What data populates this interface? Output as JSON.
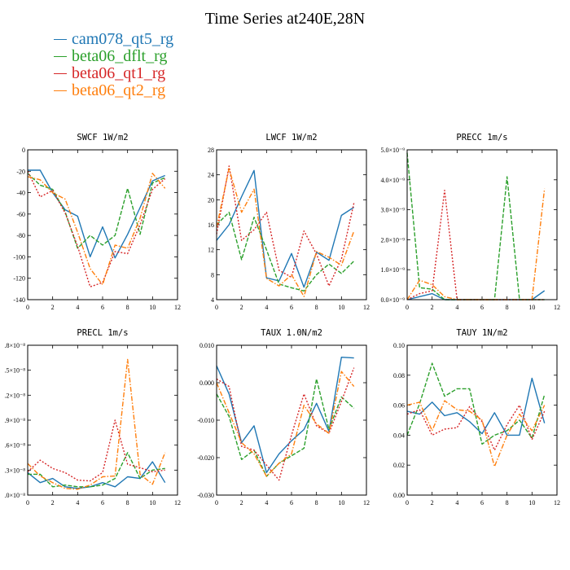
{
  "title": "Time Series at240E,28N",
  "legend": [
    {
      "name": "cam078_qt5_rg",
      "color": "#1f77b4"
    },
    {
      "name": "beta06_dflt_rg",
      "color": "#2ca02c"
    },
    {
      "name": "beta06_qt1_rg",
      "color": "#d62728"
    },
    {
      "name": "beta06_qt2_rg",
      "color": "#ff7f0e"
    }
  ],
  "chart_data": [
    {
      "type": "line",
      "title": "SWCF   1W/m2",
      "x": [
        0,
        1,
        2,
        3,
        4,
        5,
        6,
        7,
        8,
        9,
        10,
        11
      ],
      "xlim": [
        0,
        12
      ],
      "xticks": [
        0,
        2,
        4,
        6,
        8,
        10,
        12
      ],
      "ylim": [
        -140,
        0
      ],
      "yticks": [
        -140,
        -120,
        -100,
        -80,
        -60,
        -40,
        -20,
        0
      ],
      "ytick_labels": [
        "-140",
        "-120",
        "-100",
        "-80",
        "-60",
        "-40",
        "-20",
        "0"
      ],
      "series": [
        {
          "values": [
            -19,
            -19,
            -40,
            -56,
            -62,
            -100,
            -72,
            -101,
            -79,
            -54,
            -29,
            -24
          ]
        },
        {
          "values": [
            -22,
            -33,
            -37,
            -58,
            -92,
            -80,
            -89,
            -80,
            -36,
            -79,
            -31,
            -26
          ]
        },
        {
          "values": [
            -20,
            -44,
            -38,
            -59,
            -90,
            -128,
            -124,
            -95,
            -97,
            -70,
            -37,
            -27
          ]
        },
        {
          "values": [
            -25,
            -28,
            -40,
            -46,
            -77,
            -111,
            -126,
            -89,
            -92,
            -64,
            -22,
            -36
          ]
        }
      ]
    },
    {
      "type": "line",
      "title": "LWCF   1W/m2",
      "x": [
        0,
        1,
        2,
        3,
        4,
        5,
        6,
        7,
        8,
        9,
        10,
        11
      ],
      "xlim": [
        0,
        12
      ],
      "xticks": [
        0,
        2,
        4,
        6,
        8,
        10,
        12
      ],
      "ylim": [
        4,
        28
      ],
      "yticks": [
        4,
        8,
        12,
        16,
        20,
        24,
        28
      ],
      "ytick_labels": [
        "4",
        "8",
        "12",
        "16",
        "20",
        "24",
        "28"
      ],
      "series": [
        {
          "values": [
            13.5,
            16,
            20.5,
            24.7,
            7.5,
            7,
            11.4,
            6,
            11.6,
            10.3,
            17.5,
            18.8
          ]
        },
        {
          "values": [
            16,
            18,
            10.4,
            17.2,
            12,
            6.5,
            5.9,
            5.4,
            8,
            9.7,
            8.2,
            10.2
          ]
        },
        {
          "values": [
            14.5,
            25.4,
            13.5,
            15.2,
            18,
            8.7,
            7.6,
            15,
            11.3,
            6.2,
            10.5,
            19.5
          ]
        },
        {
          "values": [
            15.6,
            25,
            18,
            21.7,
            7.4,
            6.2,
            8,
            4.5,
            11.7,
            10.8,
            9.5,
            15
          ]
        }
      ]
    },
    {
      "type": "line",
      "title": "PRECC   1m/s",
      "x": [
        0,
        1,
        2,
        3,
        4,
        5,
        6,
        7,
        8,
        9,
        10,
        11
      ],
      "xlim": [
        0,
        12
      ],
      "xticks": [
        0,
        2,
        4,
        6,
        8,
        10,
        12
      ],
      "ylim": [
        0,
        5e-09
      ],
      "yticks": [
        0,
        1e-09,
        2e-09,
        3e-09,
        4e-09,
        5e-09
      ],
      "ytick_labels": [
        "0.0×10⁻⁹",
        "1.0×10⁻⁹",
        "2.0×10⁻⁹",
        "3.0×10⁻⁹",
        "4.0×10⁻⁹",
        "5.0×10⁻⁹"
      ],
      "series": [
        {
          "values": [
            0,
            1e-10,
            2e-10,
            0,
            0,
            0,
            0,
            0,
            0,
            0,
            0,
            3e-10
          ]
        },
        {
          "values": [
            4.9e-09,
            4e-10,
            3.5e-10,
            0,
            0,
            0,
            0,
            0,
            4.1e-09,
            0,
            0,
            0
          ]
        },
        {
          "values": [
            0,
            2e-10,
            3e-10,
            3.65e-09,
            0,
            0,
            0,
            0,
            0,
            0,
            0,
            0
          ]
        },
        {
          "values": [
            0,
            6.5e-10,
            5e-10,
            1e-10,
            0,
            0,
            0,
            0,
            0,
            0,
            0,
            3.7e-09
          ]
        }
      ]
    },
    {
      "type": "line",
      "title": "PRECL   1m/s",
      "x": [
        0,
        1,
        2,
        3,
        4,
        5,
        6,
        7,
        8,
        9,
        10,
        11
      ],
      "xlim": [
        0,
        12
      ],
      "xticks": [
        0,
        2,
        4,
        6,
        8,
        10,
        12
      ],
      "ylim": [
        0,
        1.8e-08
      ],
      "yticks": [
        0,
        3e-09,
        6e-09,
        9e-09,
        1.2e-08,
        1.5e-08,
        1.8e-08
      ],
      "ytick_labels": [
        ".0×10⁻⁸",
        ".3×10⁻⁸",
        ".6×10⁻⁸",
        ".9×10⁻⁸",
        ".2×10⁻⁸",
        ".5×10⁻⁸",
        ".8×10⁻⁸"
      ],
      "series": [
        {
          "values": [
            2.7e-09,
            1.5e-09,
            2e-09,
            1e-09,
            8e-10,
            1e-09,
            1.5e-09,
            1e-09,
            2.2e-09,
            2e-09,
            4e-09,
            1.5e-09
          ]
        },
        {
          "values": [
            2.5e-09,
            2.5e-09,
            1e-09,
            1.2e-09,
            1e-09,
            1e-09,
            1.2e-09,
            2e-09,
            5.1e-09,
            2e-09,
            3e-09,
            3.2e-09
          ]
        },
        {
          "values": [
            2.8e-09,
            4.2e-09,
            3.2e-09,
            2.7e-09,
            1.8e-09,
            1.7e-09,
            2.7e-09,
            9e-09,
            3.7e-09,
            3.3e-09,
            2.8e-09,
            3e-09
          ]
        },
        {
          "values": [
            3.8e-09,
            2.3e-09,
            1.5e-09,
            8e-10,
            7e-10,
            1.2e-09,
            2.2e-09,
            2.3e-09,
            1.63e-08,
            2.5e-09,
            1.3e-09,
            5.1e-09
          ]
        }
      ]
    },
    {
      "type": "line",
      "title": "TAUX   1.0N/m2",
      "x": [
        0,
        1,
        2,
        3,
        4,
        5,
        6,
        7,
        8,
        9,
        10,
        11
      ],
      "xlim": [
        0,
        12
      ],
      "xticks": [
        0,
        2,
        4,
        6,
        8,
        10,
        12
      ],
      "ylim": [
        -0.03,
        0.01
      ],
      "yticks": [
        -0.03,
        -0.02,
        -0.01,
        0,
        0.01
      ],
      "ytick_labels": [
        "-0.030",
        "-0.020",
        "-0.010",
        "0.000",
        "0.010"
      ],
      "series": [
        {
          "values": [
            0.0045,
            -0.003,
            -0.016,
            -0.0115,
            -0.024,
            -0.019,
            -0.0155,
            -0.0125,
            -0.0055,
            -0.013,
            0.0068,
            0.0066
          ]
        },
        {
          "values": [
            -0.003,
            -0.009,
            -0.0205,
            -0.018,
            -0.025,
            -0.0215,
            -0.0195,
            -0.0175,
            0.001,
            -0.0125,
            -0.0038,
            -0.0068
          ]
        },
        {
          "values": [
            0.001,
            -0.001,
            -0.017,
            -0.018,
            -0.022,
            -0.026,
            -0.014,
            -0.003,
            -0.0115,
            -0.0135,
            -0.005,
            0.004
          ]
        },
        {
          "values": [
            0,
            -0.008,
            -0.016,
            -0.019,
            -0.025,
            -0.0215,
            -0.019,
            -0.006,
            -0.011,
            -0.0135,
            0.003,
            -0.001
          ]
        }
      ]
    },
    {
      "type": "line",
      "title": "TAUY   1N/m2",
      "x": [
        0,
        1,
        2,
        3,
        4,
        5,
        6,
        7,
        8,
        9,
        10,
        11
      ],
      "xlim": [
        0,
        12
      ],
      "xticks": [
        0,
        2,
        4,
        6,
        8,
        10,
        12
      ],
      "ylim": [
        0,
        0.1
      ],
      "yticks": [
        0,
        0.02,
        0.04,
        0.06,
        0.08,
        0.1
      ],
      "ytick_labels": [
        "0.00",
        "0.02",
        "0.04",
        "0.06",
        "0.08",
        "0.10"
      ],
      "series": [
        {
          "values": [
            0.056,
            0.054,
            0.062,
            0.053,
            0.055,
            0.049,
            0.041,
            0.055,
            0.04,
            0.04,
            0.078,
            0.048
          ]
        },
        {
          "values": [
            0.04,
            0.061,
            0.088,
            0.066,
            0.071,
            0.071,
            0.034,
            0.04,
            0.043,
            0.05,
            0.038,
            0.067
          ]
        },
        {
          "values": [
            0.054,
            0.057,
            0.04,
            0.044,
            0.045,
            0.059,
            0.049,
            0.03,
            0.047,
            0.06,
            0.037,
            0.056
          ]
        },
        {
          "values": [
            0.06,
            0.062,
            0.043,
            0.063,
            0.057,
            0.056,
            0.05,
            0.019,
            0.04,
            0.054,
            0.043,
            0.06
          ]
        }
      ]
    }
  ]
}
